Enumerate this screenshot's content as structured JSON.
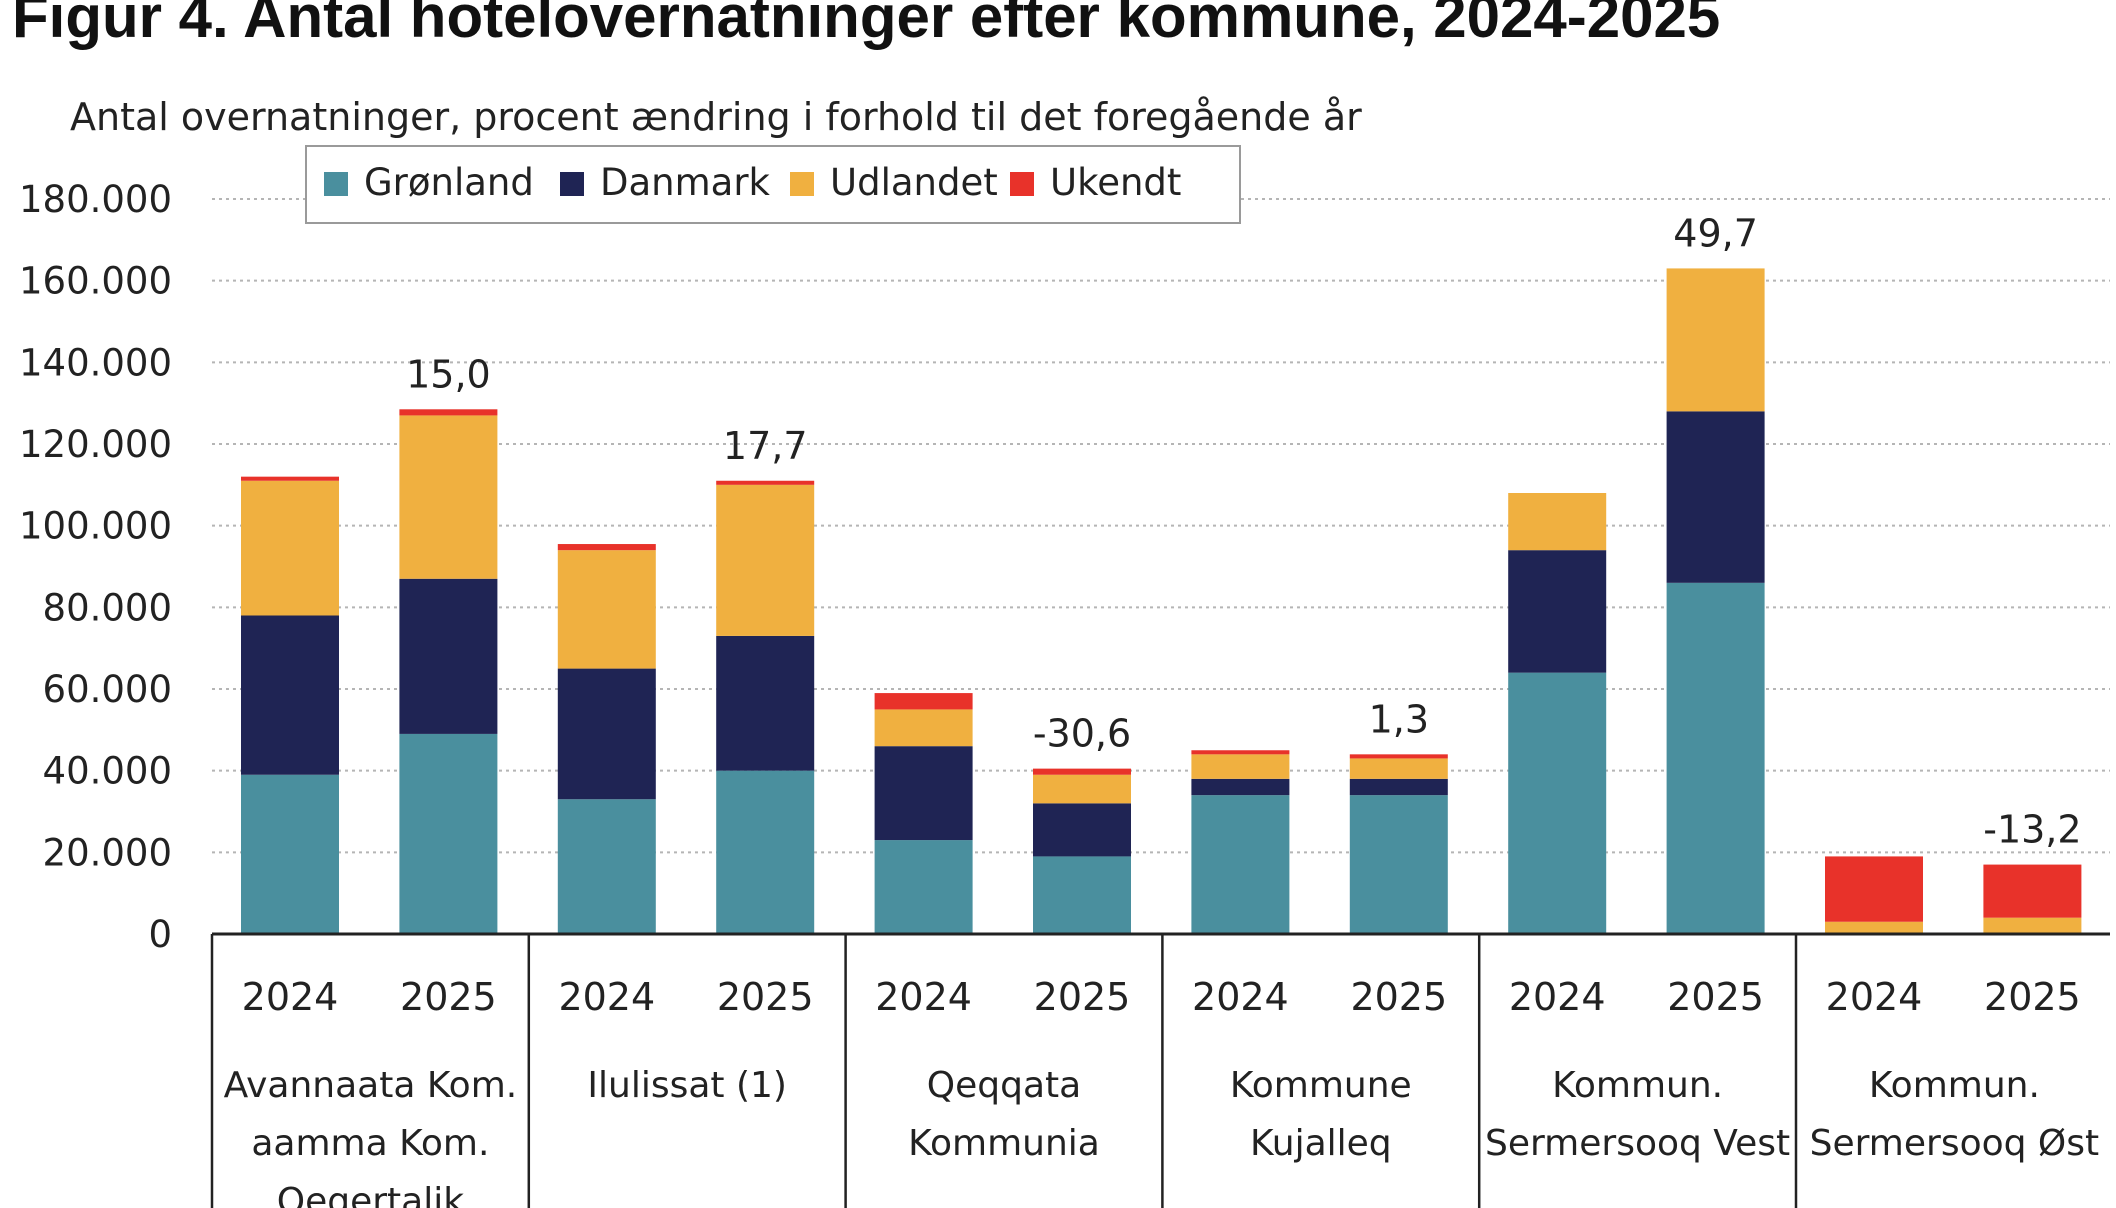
{
  "title": "Figur 4. Antal hotelovernatninger efter kommune, 2024-2025",
  "chart_data": {
    "type": "bar",
    "stacked": true,
    "subtitle": "Antal overnatninger, procent ændring i forhold til det foregående år",
    "ylim": [
      0,
      180000
    ],
    "yticks": [
      0,
      20000,
      40000,
      60000,
      80000,
      100000,
      120000,
      140000,
      160000,
      180000
    ],
    "ytick_labels": [
      "0",
      "20.000",
      "40.000",
      "60.000",
      "80.000",
      "100.000",
      "120.000",
      "140.000",
      "160.000",
      "180.000"
    ],
    "grid": true,
    "legend_position": "top-left",
    "groups": [
      {
        "name_lines": [
          "Avannaata Kom.",
          "aamma Kom.",
          "Qeqertalik"
        ],
        "years": [
          "2024",
          "2025"
        ],
        "change": "15,0"
      },
      {
        "name_lines": [
          "Ilulissat (1)"
        ],
        "years": [
          "2024",
          "2025"
        ],
        "change": "17,7"
      },
      {
        "name_lines": [
          "Qeqqata",
          "Kommunia"
        ],
        "years": [
          "2024",
          "2025"
        ],
        "change": "-30,6"
      },
      {
        "name_lines": [
          "Kommune",
          "Kujalleq"
        ],
        "years": [
          "2024",
          "2025"
        ],
        "change": "1,3"
      },
      {
        "name_lines": [
          "Kommun.",
          "Sermersooq Vest"
        ],
        "years": [
          "2024",
          "2025"
        ],
        "change": "49,7"
      },
      {
        "name_lines": [
          "Kommun.",
          "Sermersooq Øst"
        ],
        "years": [
          "2024",
          "2025"
        ],
        "change": "-13,2"
      }
    ],
    "series": [
      {
        "name": "Grønland",
        "color": "#4a8f9e",
        "values": [
          39000,
          49000,
          33000,
          40000,
          23000,
          19000,
          34000,
          34000,
          64000,
          86000,
          0,
          0
        ]
      },
      {
        "name": "Danmark",
        "color": "#1f2454",
        "values": [
          39000,
          38000,
          32000,
          33000,
          23000,
          13000,
          4000,
          4000,
          30000,
          42000,
          0,
          0
        ]
      },
      {
        "name": "Udlandet",
        "color": "#f0b040",
        "values": [
          33000,
          40000,
          29000,
          37000,
          9000,
          7000,
          6000,
          5000,
          14000,
          35000,
          3000,
          4000
        ]
      },
      {
        "name": "Ukendt",
        "color": "#e8322a",
        "values": [
          1000,
          1500,
          1500,
          1000,
          4000,
          1500,
          1000,
          1000,
          0,
          0,
          16000,
          13000
        ]
      }
    ]
  }
}
